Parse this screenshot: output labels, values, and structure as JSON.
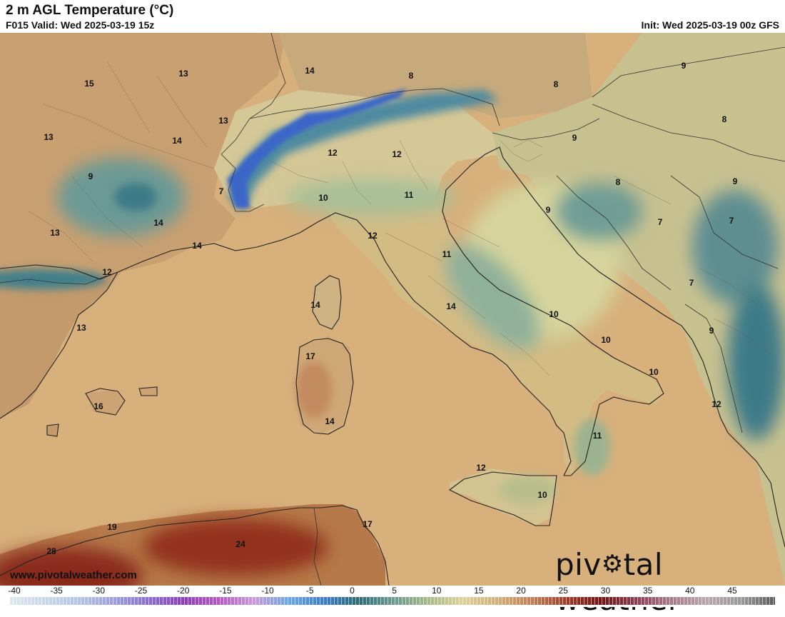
{
  "header": {
    "title": "2 m AGL Temperature (°C)",
    "valid": "F015 Valid: Wed 2025-03-19 15z",
    "init": "Init: Wed 2025-03-19 00z GFS"
  },
  "branding": {
    "site": "www.pivotalweather.com",
    "logo_prefix": "piv",
    "logo_suffix": "tal weather"
  },
  "map": {
    "region": "Western/Central Mediterranean, Italy, Alps, Balkans",
    "colors": {
      "sea": "#d7b07c",
      "land_warm": "#c9a071",
      "land_mild": "#d4c892",
      "cool": "#a9c09a",
      "cold": "#4f8a96",
      "snow": "#3a66c8",
      "hot": "#8a2a1e",
      "border": "#2a2a2a"
    },
    "values": [
      {
        "t": "15"
      },
      {
        "t": "13"
      },
      {
        "t": "14"
      },
      {
        "t": "8"
      },
      {
        "t": "8"
      },
      {
        "t": "9"
      },
      {
        "t": "13"
      },
      {
        "t": "14"
      },
      {
        "t": "13"
      },
      {
        "t": "12"
      },
      {
        "t": "12"
      },
      {
        "t": "8"
      },
      {
        "t": "9"
      },
      {
        "t": "8"
      },
      {
        "t": "9"
      },
      {
        "t": "9"
      },
      {
        "t": "7"
      },
      {
        "t": "10"
      },
      {
        "t": "11"
      },
      {
        "t": "9"
      },
      {
        "t": "7"
      },
      {
        "t": "7"
      },
      {
        "t": "13"
      },
      {
        "t": "14"
      },
      {
        "t": "12"
      },
      {
        "t": "11"
      },
      {
        "t": "12"
      },
      {
        "t": "7"
      },
      {
        "t": "14"
      },
      {
        "t": "14"
      },
      {
        "t": "10"
      },
      {
        "t": "9"
      },
      {
        "t": "13"
      },
      {
        "t": "17"
      },
      {
        "t": "14"
      },
      {
        "t": "10"
      },
      {
        "t": "10"
      },
      {
        "t": "16"
      },
      {
        "t": "14"
      },
      {
        "t": "12"
      },
      {
        "t": "11"
      },
      {
        "t": "12"
      },
      {
        "t": "10"
      },
      {
        "t": "19"
      },
      {
        "t": "17"
      },
      {
        "t": "24"
      },
      {
        "t": "28"
      }
    ]
  },
  "legend": {
    "ticks": [
      "-40",
      "-35",
      "-30",
      "-25",
      "-20",
      "-15",
      "-10",
      "-5",
      "0",
      "5",
      "10",
      "15",
      "20",
      "25",
      "30",
      "35",
      "40",
      "45"
    ],
    "stops": [
      "#dfe8ee",
      "#c9d8e6",
      "#b3c4e3",
      "#9d9fdc",
      "#8b6fcf",
      "#8b3fb6",
      "#b25bbf",
      "#c89ad8",
      "#6fa9e4",
      "#3f7fc7",
      "#2c6a78",
      "#6b9a8e",
      "#a4b989",
      "#d9d39a",
      "#d2b07a",
      "#c08258",
      "#9e3c2a",
      "#701414",
      "#8a3f52",
      "#a77a8a",
      "#b9a7ad",
      "#9b9b9b",
      "#5a5a5a"
    ]
  }
}
